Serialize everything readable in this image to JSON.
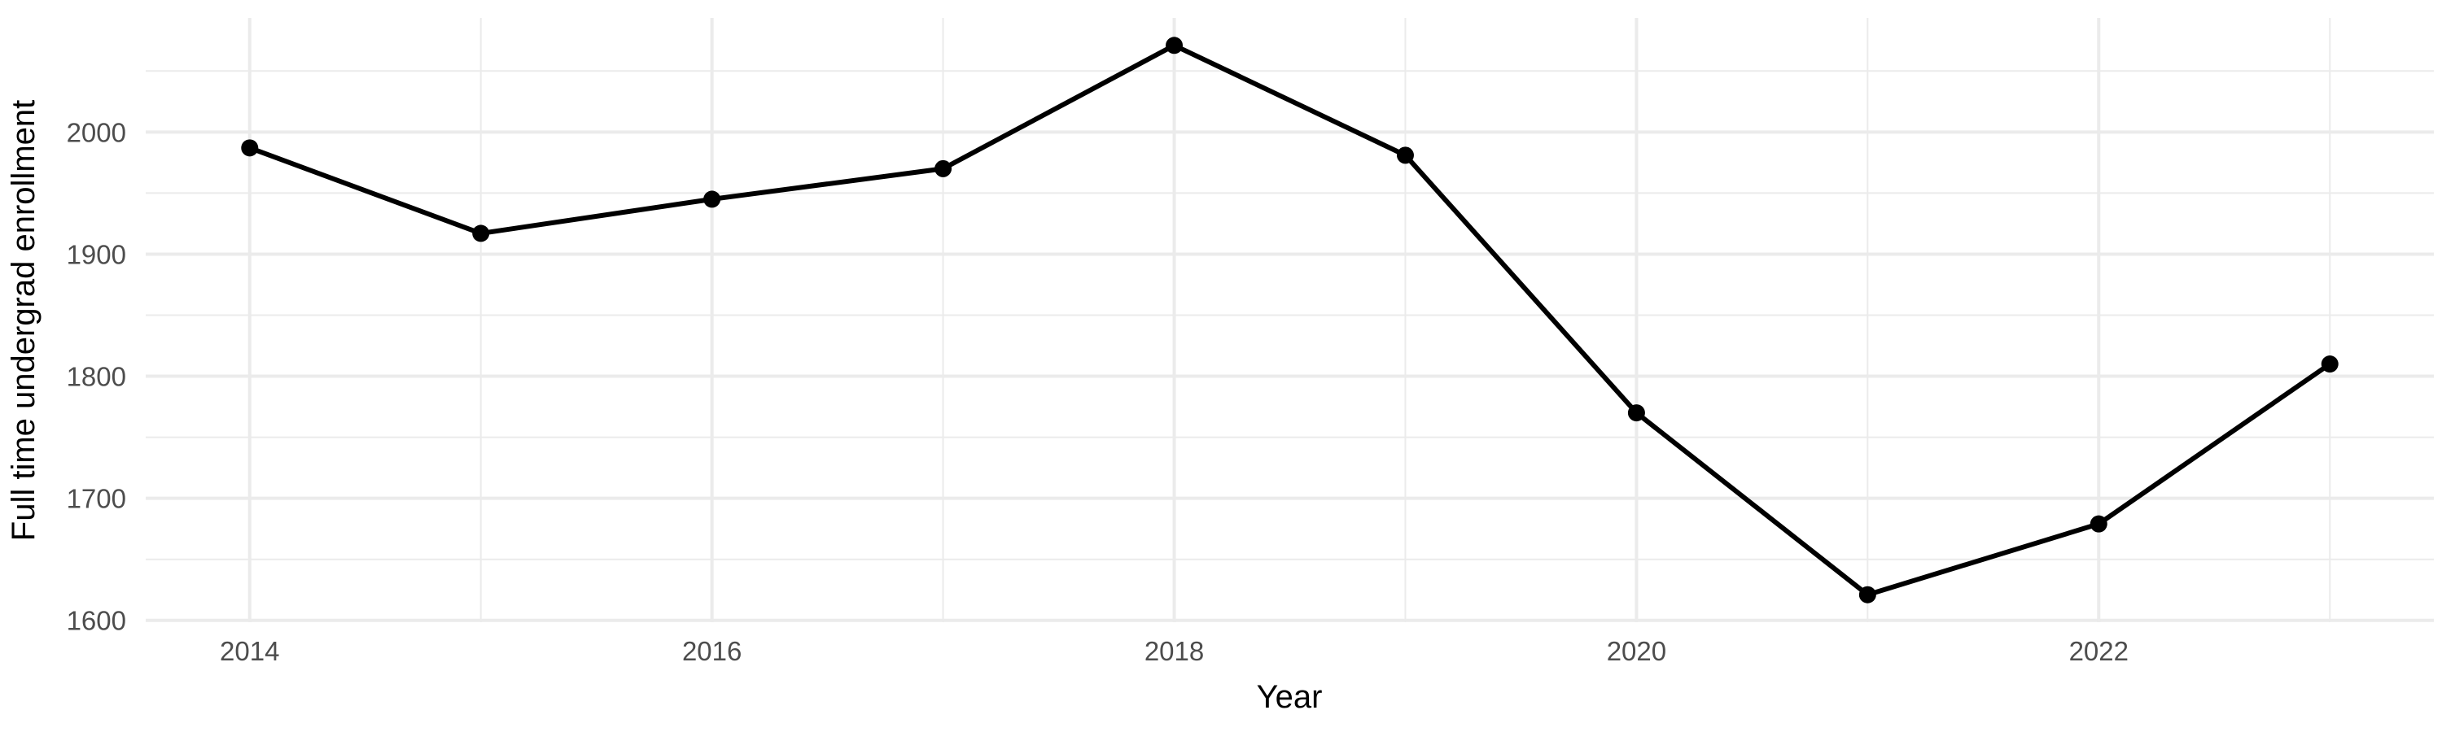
{
  "figure": {
    "background": "#FFFFFF"
  },
  "chart_data": {
    "type": "line",
    "title": "",
    "xlabel": "Year",
    "ylabel": "Full time undergrad enrollment",
    "x": [
      2014,
      2015,
      2016,
      2017,
      2018,
      2019,
      2020,
      2021,
      2022,
      2023
    ],
    "series": [
      {
        "name": "Full time undergrad enrollment",
        "values": [
          1987,
          1917,
          1945,
          1970,
          2071,
          1981,
          1770,
          1621,
          1679,
          1810
        ]
      }
    ],
    "points_shown": true,
    "x_ticks": [
      2014,
      2016,
      2018,
      2020,
      2022
    ],
    "x_minor_gridlines": [
      2015,
      2017,
      2019,
      2021,
      2023
    ],
    "y_ticks": [
      2000,
      1900,
      1800,
      1700,
      1600
    ],
    "y_minor_gridlines": [
      2050,
      1950,
      1850,
      1750,
      1650
    ],
    "xlim": [
      2013.55,
      2023.45
    ],
    "ylim": [
      1598.5,
      2093.5
    ],
    "grid": "major-and-minor",
    "legend": false,
    "panel_border": false,
    "axis_ticks": false,
    "styles": {
      "line_color": "#000000",
      "point_color": "#000000",
      "grid_color": "#EBEBEB",
      "tick_label_color": "#4D4D4D",
      "axis_title_color": "#000000",
      "background": "#FFFFFF"
    }
  }
}
